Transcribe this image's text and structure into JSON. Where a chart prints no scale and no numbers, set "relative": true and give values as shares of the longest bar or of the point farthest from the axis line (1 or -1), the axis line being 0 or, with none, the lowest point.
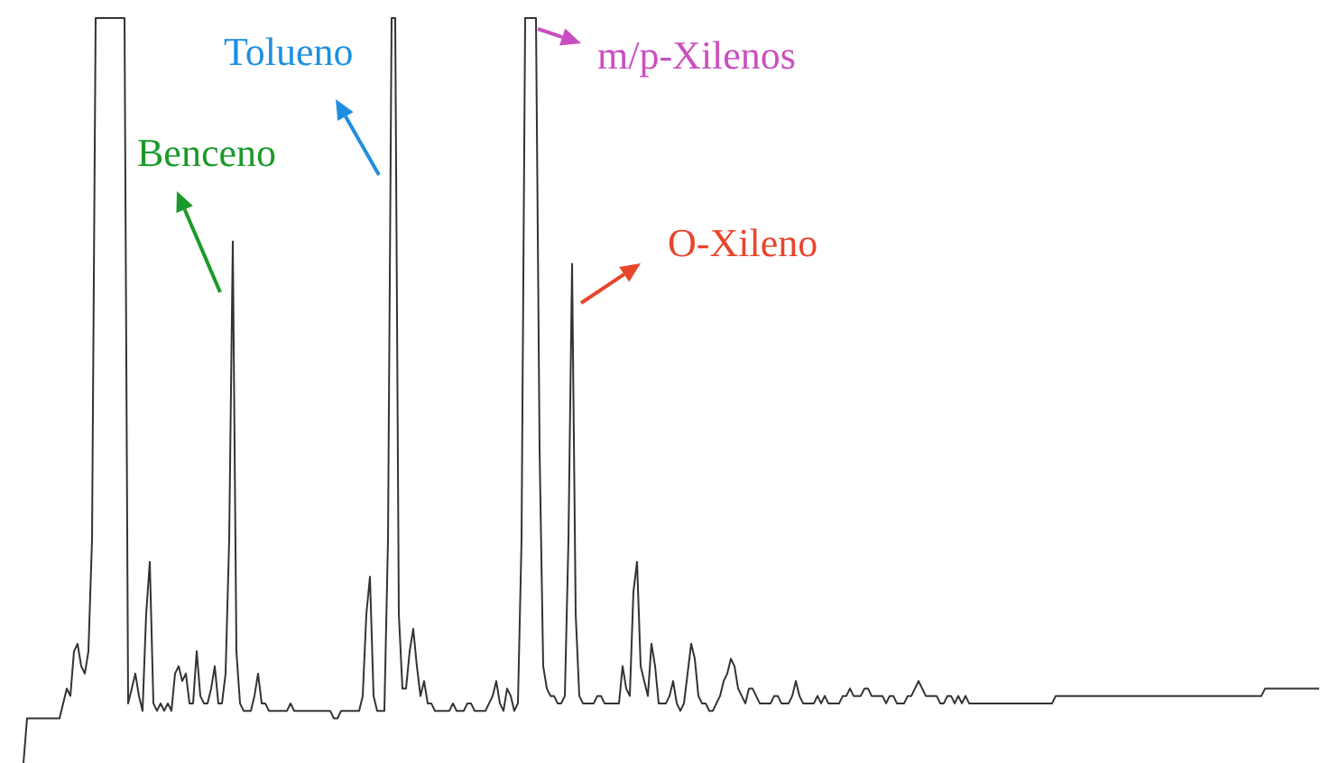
{
  "chart_data": {
    "type": "line",
    "relative": true,
    "annotations": [
      "Benceno",
      "Tolueno",
      "m/p-Xilenos",
      "O-Xileno"
    ],
    "categories": [
      null,
      null,
      null,
      null,
      null,
      null,
      null,
      null,
      null,
      null,
      null,
      null,
      null,
      null,
      null,
      null,
      null,
      null,
      null,
      null,
      null,
      null,
      null,
      null,
      null,
      null,
      null,
      null,
      null,
      null,
      null,
      null,
      null,
      null,
      null,
      null,
      null,
      null,
      null,
      null,
      null,
      null,
      null,
      null,
      null,
      null,
      null,
      null,
      null,
      null,
      null,
      null,
      null,
      null,
      null,
      null,
      null,
      null,
      null,
      null,
      null,
      null,
      null,
      null,
      null,
      null,
      null,
      null,
      null,
      null,
      null,
      null,
      null,
      null,
      null,
      null,
      null,
      null,
      null,
      null,
      null,
      null,
      null,
      null,
      null,
      null,
      null,
      null,
      null,
      null,
      null,
      null,
      null,
      null,
      null,
      null,
      null,
      null,
      null,
      null,
      null,
      null,
      null,
      null,
      null,
      null,
      null,
      null,
      null,
      null,
      null,
      null,
      null,
      null,
      null,
      null,
      null,
      null,
      null,
      null,
      null,
      null,
      null,
      null,
      null,
      null,
      null,
      null,
      null,
      null,
      null,
      null,
      null,
      null,
      null,
      null,
      null,
      null,
      null,
      null,
      null,
      null,
      null,
      null,
      null,
      null,
      null,
      null,
      null,
      null,
      null,
      null,
      null,
      null,
      null,
      null,
      null,
      null,
      null,
      null,
      null,
      null,
      null,
      null,
      null,
      null,
      null,
      null,
      null,
      null,
      null,
      null,
      null,
      null,
      null,
      null,
      null,
      null,
      null,
      null,
      null,
      null,
      null,
      null,
      null,
      null,
      null,
      null,
      null,
      null,
      null,
      null,
      null,
      null,
      null,
      null,
      null,
      null,
      null,
      null,
      null,
      null,
      null,
      null,
      null,
      null,
      null,
      null,
      null,
      null,
      null,
      null,
      null,
      null,
      null,
      null,
      null,
      null,
      null,
      null,
      null,
      null,
      null,
      null,
      null,
      null,
      null,
      null,
      null,
      null,
      null,
      null,
      null,
      null,
      null,
      null,
      null,
      null,
      null,
      null,
      null,
      null,
      null,
      null,
      null,
      null,
      null,
      null,
      null,
      null,
      null,
      null,
      null,
      null,
      null,
      null,
      null,
      null,
      null,
      null,
      null,
      null,
      null,
      null,
      null,
      null,
      null,
      null,
      null,
      null,
      null,
      null,
      null,
      null,
      null,
      null,
      null,
      null,
      null,
      null,
      null,
      null,
      null,
      null,
      null,
      null,
      null,
      null,
      null,
      null,
      null,
      null,
      null,
      null,
      null,
      null,
      null,
      null,
      null,
      null,
      null,
      null,
      null,
      null,
      null,
      null,
      null,
      null,
      null,
      null,
      null,
      null,
      null,
      null,
      null,
      null,
      null,
      null,
      null,
      null,
      null,
      null,
      null,
      null,
      null,
      null,
      null,
      null,
      null,
      null,
      null,
      null,
      null,
      null,
      null,
      null,
      null,
      null,
      null,
      null,
      null,
      null,
      null,
      null,
      null,
      null,
      null,
      null,
      null,
      null,
      null,
      null,
      null,
      null,
      null,
      null,
      null,
      null,
      null,
      null
    ],
    "series": [
      {
        "color": "#333333",
        "values": [
          0,
          0.06,
          0.06,
          0.06,
          0.06,
          0.06,
          0.06,
          0.06,
          0.06,
          0.06,
          0.06,
          0.08,
          0.1,
          0.09,
          0.15,
          0.16,
          0.13,
          0.12,
          0.15,
          0.3,
          1,
          1,
          1,
          1,
          1,
          1,
          1,
          1,
          1,
          0.08,
          0.1,
          0.12,
          0.09,
          0.07,
          0.2,
          0.27,
          0.08,
          0.07,
          0.08,
          0.07,
          0.08,
          0.07,
          0.12,
          0.13,
          0.11,
          0.12,
          0.08,
          0.08,
          0.15,
          0.09,
          0.08,
          0.08,
          0.1,
          0.13,
          0.08,
          0.08,
          0.12,
          0.3,
          0.7,
          0.15,
          0.08,
          0.07,
          0.07,
          0.07,
          0.09,
          0.12,
          0.08,
          0.08,
          0.07,
          0.07,
          0.07,
          0.07,
          0.07,
          0.07,
          0.08,
          0.07,
          0.07,
          0.07,
          0.07,
          0.07,
          0.07,
          0.07,
          0.07,
          0.07,
          0.07,
          0.07,
          0.06,
          0.06,
          0.07,
          0.07,
          0.07,
          0.07,
          0.07,
          0.07,
          0.09,
          0.2,
          0.25,
          0.09,
          0.07,
          0.07,
          0.07,
          0.3,
          1,
          1,
          0.2,
          0.1,
          0.1,
          0.15,
          0.18,
          0.13,
          0.09,
          0.11,
          0.08,
          0.08,
          0.07,
          0.07,
          0.07,
          0.07,
          0.07,
          0.08,
          0.07,
          0.07,
          0.07,
          0.08,
          0.08,
          0.07,
          0.07,
          0.07,
          0.07,
          0.08,
          0.09,
          0.11,
          0.08,
          0.07,
          0.1,
          0.09,
          0.07,
          0.08,
          0.3,
          1,
          1,
          1,
          1,
          0.42,
          0.13,
          0.1,
          0.09,
          0.09,
          0.08,
          0.08,
          0.09,
          0.3,
          0.67,
          0.2,
          0.09,
          0.08,
          0.08,
          0.08,
          0.08,
          0.09,
          0.09,
          0.08,
          0.08,
          0.08,
          0.08,
          0.08,
          0.13,
          0.1,
          0.09,
          0.23,
          0.27,
          0.13,
          0.11,
          0.09,
          0.16,
          0.13,
          0.08,
          0.08,
          0.08,
          0.09,
          0.11,
          0.08,
          0.07,
          0.08,
          0.12,
          0.16,
          0.14,
          0.09,
          0.08,
          0.08,
          0.07,
          0.07,
          0.08,
          0.09,
          0.11,
          0.12,
          0.14,
          0.13,
          0.1,
          0.09,
          0.08,
          0.1,
          0.1,
          0.09,
          0.08,
          0.08,
          0.08,
          0.08,
          0.09,
          0.09,
          0.08,
          0.08,
          0.08,
          0.09,
          0.11,
          0.09,
          0.08,
          0.08,
          0.08,
          0.08,
          0.09,
          0.08,
          0.09,
          0.08,
          0.08,
          0.08,
          0.08,
          0.09,
          0.09,
          0.1,
          0.09,
          0.09,
          0.09,
          0.1,
          0.1,
          0.09,
          0.09,
          0.09,
          0.09,
          0.08,
          0.09,
          0.09,
          0.08,
          0.08,
          0.08,
          0.09,
          0.09,
          0.1,
          0.11,
          0.1,
          0.09,
          0.09,
          0.09,
          0.09,
          0.08,
          0.08,
          0.09,
          0.09,
          0.08,
          0.09,
          0.08,
          0.09,
          0.08,
          0.08,
          0.08,
          0.08,
          0.08,
          0.08,
          0.08,
          0.08,
          0.08,
          0.08,
          0.08,
          0.08,
          0.08,
          0.08,
          0.08,
          0.08,
          0.08,
          0.08,
          0.08,
          0.08,
          0.08,
          0.08,
          0.08,
          0.08,
          0.09,
          0.09,
          0.09,
          0.09,
          0.09,
          0.09,
          0.09,
          0.09,
          0.09,
          0.09,
          0.09,
          0.09,
          0.09,
          0.09,
          0.09,
          0.09,
          0.09,
          0.09,
          0.09,
          0.09,
          0.09,
          0.09,
          0.09,
          0.09,
          0.09,
          0.09,
          0.09,
          0.09,
          0.09,
          0.09,
          0.09,
          0.09,
          0.09,
          0.09,
          0.09,
          0.09,
          0.09,
          0.09,
          0.09,
          0.09,
          0.09,
          0.09,
          0.09,
          0.09,
          0.09,
          0.09,
          0.09,
          0.09,
          0.09,
          0.09,
          0.09,
          0.09,
          0.09,
          0.09,
          0.09,
          0.09,
          0.09,
          0.09,
          0.1,
          0.1,
          0.1,
          0.1,
          0.1,
          0.1,
          0.1,
          0.1,
          0.1,
          0.1,
          0.1,
          0.1,
          0.1,
          0.1,
          0.1,
          0.1
        ]
      }
    ]
  }
}
